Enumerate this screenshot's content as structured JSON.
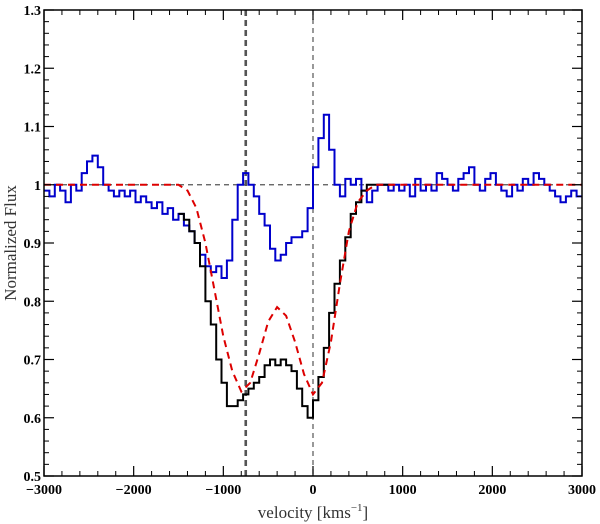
{
  "chart_data": {
    "type": "line",
    "title": "",
    "xlabel_text": "velocity [kms",
    "xlabel_sup": "−1",
    "xlabel_close": "]",
    "ylabel": "Normalized Flux",
    "xlim": [
      -3000,
      3000
    ],
    "ylim": [
      0.5,
      1.3
    ],
    "xticks": [
      -3000,
      -2000,
      -1000,
      0,
      1000,
      2000,
      3000
    ],
    "xtick_labels": [
      "−3000",
      "−2000",
      "−1000",
      "0",
      "1000",
      "2000",
      "3000"
    ],
    "yticks": [
      0.5,
      0.6,
      0.7,
      0.8,
      0.9,
      1.0,
      1.1,
      1.2,
      1.3
    ],
    "ytick_labels": [
      "0.5",
      "0.6",
      "0.7",
      "0.8",
      "0.9",
      "1",
      "1.1",
      "1.2",
      "1.3"
    ],
    "reference_lines": {
      "horizontal_y": 1.0,
      "vertical_x": [
        -750,
        0
      ],
      "color": "#555555"
    },
    "series": [
      {
        "color": "#0000cc",
        "style": "steps",
        "x": [
          -3000,
          -2940,
          -2880,
          -2820,
          -2760,
          -2700,
          -2640,
          -2580,
          -2520,
          -2460,
          -2400,
          -2340,
          -2280,
          -2220,
          -2160,
          -2100,
          -2040,
          -1980,
          -1920,
          -1860,
          -1800,
          -1740,
          -1680,
          -1620,
          -1560,
          -1500,
          -1440,
          -1380,
          -1320,
          -1260,
          -1200,
          -1140,
          -1080,
          -1020,
          -960,
          -900,
          -840,
          -780,
          -720,
          -660,
          -600,
          -540,
          -480,
          -420,
          -360,
          -300,
          -240,
          -180,
          -120,
          -60,
          0,
          60,
          120,
          180,
          240,
          300,
          360,
          420,
          480,
          540,
          600,
          660,
          720,
          780,
          840,
          900,
          960,
          1020,
          1080,
          1140,
          1200,
          1260,
          1320,
          1380,
          1440,
          1500,
          1560,
          1620,
          1680,
          1740,
          1800,
          1860,
          1920,
          1980,
          2040,
          2100,
          2160,
          2220,
          2280,
          2340,
          2400,
          2460,
          2520,
          2580,
          2640,
          2700,
          2760,
          2820,
          2880,
          2940,
          3000
        ],
        "y": [
          0.99,
          0.98,
          1.0,
          0.99,
          0.97,
          1.0,
          0.99,
          1.02,
          1.04,
          1.05,
          1.03,
          1.0,
          0.99,
          0.98,
          0.99,
          0.98,
          0.99,
          0.97,
          0.98,
          0.97,
          0.96,
          0.97,
          0.95,
          0.96,
          0.94,
          0.95,
          0.93,
          0.92,
          0.9,
          0.88,
          0.86,
          0.85,
          0.86,
          0.84,
          0.87,
          0.94,
          1.0,
          1.02,
          1.0,
          0.98,
          0.95,
          0.93,
          0.89,
          0.87,
          0.88,
          0.9,
          0.91,
          0.91,
          0.92,
          0.96,
          1.03,
          1.08,
          1.12,
          1.06,
          1.0,
          0.98,
          1.01,
          1.0,
          1.01,
          0.99,
          0.97,
          0.99,
          1.0,
          1.0,
          0.99,
          1.0,
          0.99,
          1.0,
          0.98,
          1.01,
          0.99,
          1.0,
          0.99,
          1.02,
          1.01,
          1.0,
          0.99,
          1.01,
          1.02,
          1.03,
          1.0,
          0.99,
          1.01,
          1.02,
          1.0,
          0.99,
          0.98,
          1.0,
          0.99,
          1.01,
          1.0,
          1.02,
          1.01,
          1.0,
          0.99,
          0.98,
          0.97,
          0.98,
          0.99,
          0.98,
          0.98
        ]
      },
      {
        "color": "#000000",
        "style": "steps",
        "x": [
          -1500,
          -1440,
          -1380,
          -1320,
          -1260,
          -1200,
          -1140,
          -1080,
          -1020,
          -960,
          -900,
          -840,
          -780,
          -720,
          -660,
          -600,
          -540,
          -480,
          -420,
          -360,
          -300,
          -240,
          -180,
          -120,
          -60,
          0,
          60,
          120,
          180,
          240,
          300,
          360,
          420,
          480,
          540,
          600,
          660,
          720,
          780,
          840,
          900
        ],
        "y": [
          0.95,
          0.94,
          0.92,
          0.9,
          0.86,
          0.8,
          0.76,
          0.7,
          0.66,
          0.62,
          0.62,
          0.63,
          0.64,
          0.65,
          0.66,
          0.67,
          0.69,
          0.7,
          0.69,
          0.7,
          0.69,
          0.68,
          0.65,
          0.62,
          0.6,
          0.63,
          0.67,
          0.72,
          0.78,
          0.83,
          0.87,
          0.91,
          0.95,
          0.97,
          0.99,
          1.0,
          1.0,
          1.0,
          1.0,
          1.0,
          1.0
        ]
      },
      {
        "color": "#dd0000",
        "style": "dashed",
        "x": [
          -3000,
          -1500,
          -1400,
          -1300,
          -1200,
          -1100,
          -1000,
          -900,
          -800,
          -700,
          -600,
          -500,
          -400,
          -300,
          -200,
          -100,
          0,
          100,
          200,
          300,
          400,
          500,
          600,
          700,
          800,
          900,
          3000
        ],
        "y": [
          1.0,
          1.0,
          0.99,
          0.96,
          0.9,
          0.82,
          0.74,
          0.68,
          0.645,
          0.66,
          0.71,
          0.765,
          0.79,
          0.775,
          0.73,
          0.675,
          0.64,
          0.66,
          0.73,
          0.83,
          0.92,
          0.97,
          0.99,
          1.0,
          1.0,
          1.0,
          1.0
        ]
      }
    ]
  }
}
